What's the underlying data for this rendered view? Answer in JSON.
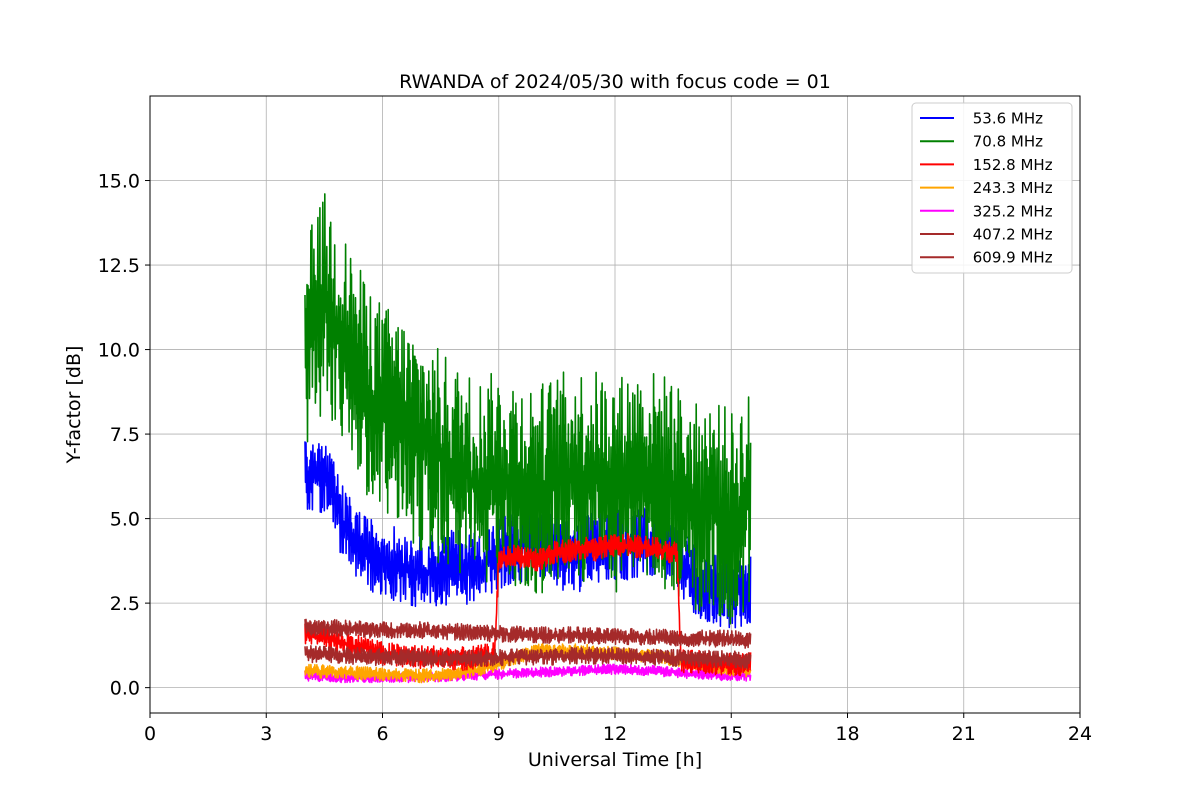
{
  "chart_data": {
    "type": "line",
    "title": "RWANDA of 2024/05/30 with focus code = 01",
    "xlabel": "Universal Time [h]",
    "ylabel": "Y-factor [dB]",
    "xlim": [
      0,
      24
    ],
    "ylim": [
      -0.75,
      17.5
    ],
    "xticks": [
      0,
      3,
      6,
      9,
      12,
      15,
      18,
      21,
      24
    ],
    "xtick_labels": [
      "0",
      "3",
      "6",
      "9",
      "12",
      "15",
      "18",
      "21",
      "24"
    ],
    "yticks": [
      0.0,
      2.5,
      5.0,
      7.5,
      10.0,
      12.5,
      15.0
    ],
    "ytick_labels": [
      "0.0",
      "2.5",
      "5.0",
      "7.5",
      "10.0",
      "12.5",
      "15.0"
    ],
    "grid": true,
    "legend_position": "top-right",
    "series": [
      {
        "name": " 53.6 MHz",
        "color": "#0000ff",
        "x": [
          4.0,
          4.5,
          5.0,
          5.5,
          6.0,
          6.5,
          7.0,
          7.5,
          8.0,
          8.5,
          9.0,
          9.5,
          10.0,
          10.5,
          11.0,
          11.5,
          12.0,
          12.5,
          13.0,
          13.5,
          14.0,
          14.5,
          15.0,
          15.5
        ],
        "y": [
          6.2,
          6.3,
          4.8,
          4.0,
          3.8,
          3.6,
          3.4,
          3.5,
          3.6,
          3.5,
          4.0,
          4.2,
          4.3,
          4.0,
          3.9,
          4.1,
          4.2,
          4.3,
          4.4,
          4.2,
          3.2,
          3.0,
          2.8,
          3.0
        ],
        "noise": 1.1
      },
      {
        "name": " 70.8 MHz",
        "color": "#008000",
        "x": [
          4.0,
          4.5,
          5.0,
          5.5,
          6.0,
          6.5,
          7.0,
          7.5,
          8.0,
          8.5,
          9.0,
          9.5,
          10.0,
          10.5,
          11.0,
          11.5,
          12.0,
          12.5,
          13.0,
          13.5,
          14.0,
          14.5,
          15.0,
          15.5
        ],
        "y": [
          10.0,
          11.5,
          10.2,
          9.0,
          8.2,
          7.8,
          7.2,
          6.8,
          6.3,
          6.0,
          6.2,
          6.0,
          5.8,
          6.1,
          6.3,
          6.2,
          6.0,
          6.3,
          6.2,
          6.0,
          5.2,
          5.4,
          5.0,
          5.6
        ],
        "noise": 3.2
      },
      {
        "name": " 152.8 MHz",
        "color": "#ff0000",
        "x": [
          4.0,
          4.5,
          5.0,
          5.5,
          6.0,
          6.5,
          7.0,
          7.5,
          8.0,
          8.5,
          8.9,
          9.0,
          9.5,
          10.0,
          10.5,
          11.0,
          11.5,
          12.0,
          12.5,
          13.0,
          13.6,
          13.7,
          14.0,
          14.5,
          15.0,
          15.5
        ],
        "y": [
          1.6,
          1.5,
          1.3,
          1.2,
          1.0,
          0.95,
          0.9,
          0.9,
          0.85,
          0.9,
          1.0,
          3.8,
          3.9,
          3.8,
          4.0,
          4.1,
          4.1,
          4.2,
          4.2,
          4.1,
          4.0,
          0.8,
          0.75,
          0.75,
          0.7,
          0.7
        ],
        "noise": 0.35
      },
      {
        "name": " 243.3 MHz",
        "color": "#ffa500",
        "x": [
          4.0,
          5.0,
          6.0,
          7.0,
          8.0,
          9.0,
          10.0,
          11.0,
          12.0,
          13.0,
          14.0,
          15.0,
          15.5
        ],
        "y": [
          0.5,
          0.45,
          0.4,
          0.35,
          0.4,
          0.7,
          1.1,
          1.1,
          1.0,
          0.95,
          0.7,
          0.55,
          0.5
        ],
        "noise": 0.2
      },
      {
        "name": " 325.2 MHz",
        "color": "#ff00ff",
        "x": [
          4.0,
          5.0,
          6.0,
          7.0,
          8.0,
          9.0,
          10.0,
          11.0,
          12.0,
          13.0,
          14.0,
          15.0,
          15.5
        ],
        "y": [
          0.35,
          0.3,
          0.3,
          0.3,
          0.35,
          0.4,
          0.45,
          0.5,
          0.55,
          0.5,
          0.4,
          0.35,
          0.35
        ],
        "noise": 0.15
      },
      {
        "name": " 407.2 MHz",
        "color": "#a52a2a",
        "x": [
          4.0,
          5.0,
          6.0,
          7.0,
          8.0,
          9.0,
          10.0,
          11.0,
          12.0,
          13.0,
          14.0,
          15.0,
          15.5
        ],
        "y": [
          1.0,
          0.95,
          0.9,
          0.9,
          0.85,
          0.9,
          0.9,
          0.95,
          0.95,
          0.9,
          0.85,
          0.85,
          0.8
        ],
        "noise": 0.25
      },
      {
        "name": " 609.9 MHz",
        "color": "#a52a2a",
        "x": [
          4.0,
          5.0,
          6.0,
          7.0,
          8.0,
          9.0,
          10.0,
          11.0,
          12.0,
          13.0,
          14.0,
          15.0,
          15.5
        ],
        "y": [
          1.8,
          1.75,
          1.7,
          1.7,
          1.65,
          1.6,
          1.55,
          1.55,
          1.5,
          1.5,
          1.45,
          1.45,
          1.4
        ],
        "noise": 0.25
      }
    ]
  }
}
